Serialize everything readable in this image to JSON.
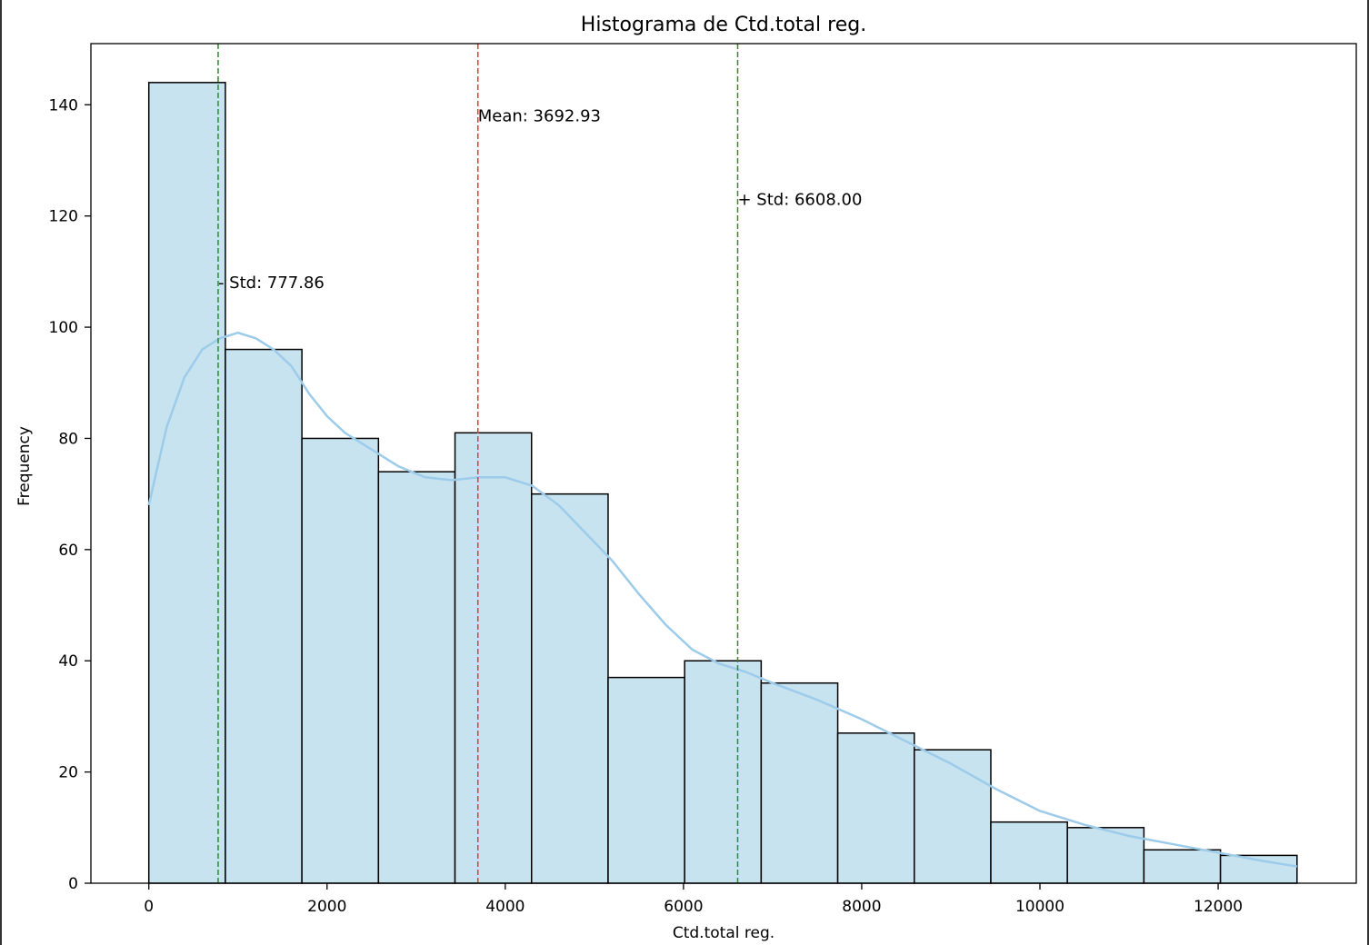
{
  "chart_data": {
    "type": "bar",
    "title": "Histograma de Ctd.total reg.",
    "xlabel": "Ctd.total reg.",
    "ylabel": "Frequency",
    "xlim": [
      -650,
      13550
    ],
    "ylim": [
      0,
      151
    ],
    "xticks": [
      0,
      2000,
      4000,
      6000,
      8000,
      10000,
      12000
    ],
    "yticks": [
      0,
      20,
      40,
      60,
      80,
      100,
      120,
      140
    ],
    "grid": false,
    "bin_edges": [
      0,
      859,
      1718,
      2577,
      3436,
      4295,
      5154,
      6013,
      6872,
      7731,
      8590,
      9449,
      10308,
      11167,
      12026,
      12885
    ],
    "values": [
      144,
      96,
      80,
      74,
      81,
      70,
      37,
      40,
      36,
      27,
      24,
      11,
      10,
      6,
      5
    ],
    "bar_fill": "#c8e3f0",
    "bar_edge": "#000000",
    "kde": {
      "color": "#9dcbea",
      "points": [
        [
          0,
          68
        ],
        [
          200,
          82
        ],
        [
          400,
          91
        ],
        [
          600,
          96
        ],
        [
          800,
          98
        ],
        [
          1000,
          99
        ],
        [
          1200,
          98
        ],
        [
          1400,
          96
        ],
        [
          1600,
          93
        ],
        [
          1800,
          88
        ],
        [
          2000,
          84
        ],
        [
          2200,
          81
        ],
        [
          2500,
          78
        ],
        [
          2800,
          75
        ],
        [
          3100,
          73
        ],
        [
          3400,
          72.5
        ],
        [
          3700,
          73
        ],
        [
          4000,
          73
        ],
        [
          4300,
          71.5
        ],
        [
          4600,
          68
        ],
        [
          4900,
          63
        ],
        [
          5200,
          58
        ],
        [
          5500,
          52
        ],
        [
          5800,
          46.5
        ],
        [
          6100,
          42
        ],
        [
          6400,
          39.5
        ],
        [
          6700,
          38
        ],
        [
          7000,
          36
        ],
        [
          7500,
          33
        ],
        [
          8000,
          29.5
        ],
        [
          8500,
          25.5
        ],
        [
          9000,
          21.5
        ],
        [
          9500,
          17
        ],
        [
          10000,
          13
        ],
        [
          10500,
          10.5
        ],
        [
          11000,
          8.5
        ],
        [
          11500,
          7
        ],
        [
          12000,
          5.5
        ],
        [
          12500,
          4
        ],
        [
          12885,
          3
        ]
      ]
    },
    "vlines": [
      {
        "name": "mean",
        "x": 3692.93,
        "color": "#e03b3b",
        "label": "Mean: 3692.93",
        "label_y": 137
      },
      {
        "name": "minus-std",
        "x": 777.86,
        "color": "#2e8b2e",
        "label": "- Std: 777.86",
        "label_y": 107
      },
      {
        "name": "plus-std",
        "x": 6608.0,
        "color": "#2e8b2e",
        "label": "+ Std: 6608.00",
        "label_y": 122
      }
    ]
  }
}
